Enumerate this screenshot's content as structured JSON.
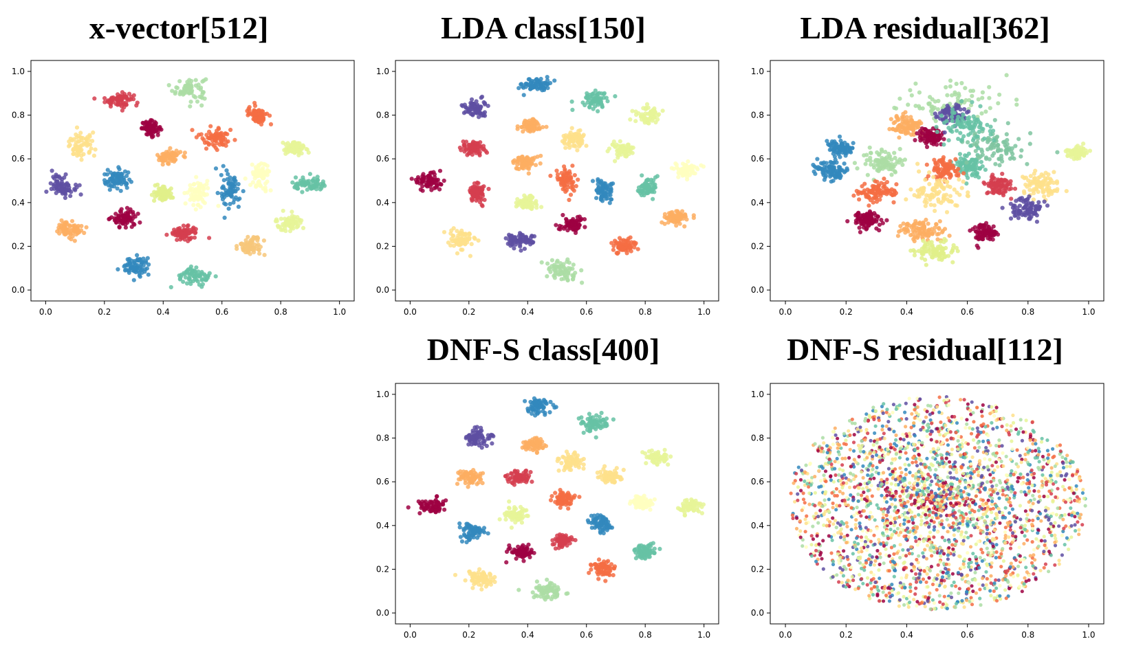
{
  "palette": [
    "#9e0142",
    "#d53e4f",
    "#f46d43",
    "#fdae61",
    "#fee08b",
    "#ffffbf",
    "#e6f598",
    "#abdda4",
    "#66c2a5",
    "#3288bd",
    "#5e4fa2",
    "#7fc4a0",
    "#e0f08a",
    "#f7c77a"
  ],
  "chart_data": [
    {
      "type": "scatter",
      "title": "x-vector[512]",
      "xlim": [
        0,
        1
      ],
      "ylim": [
        0,
        1
      ],
      "xticks": [
        "0.0",
        "0.2",
        "0.4",
        "0.6",
        "0.8",
        "1.0"
      ],
      "yticks": [
        "0.0",
        "0.2",
        "0.4",
        "0.6",
        "0.8",
        "1.0"
      ],
      "series": [
        {
          "cluster_center": [
            0.49,
            0.92
          ],
          "spread": [
            0.035,
            0.035
          ],
          "color_index": 7
        },
        {
          "cluster_center": [
            0.25,
            0.87
          ],
          "spread": [
            0.03,
            0.02
          ],
          "color_index": 1
        },
        {
          "cluster_center": [
            0.36,
            0.74
          ],
          "spread": [
            0.02,
            0.02
          ],
          "color_index": 0
        },
        {
          "cluster_center": [
            0.12,
            0.66
          ],
          "spread": [
            0.03,
            0.035
          ],
          "color_index": 4
        },
        {
          "cluster_center": [
            0.06,
            0.48
          ],
          "spread": [
            0.025,
            0.03
          ],
          "color_index": 10
        },
        {
          "cluster_center": [
            0.24,
            0.5
          ],
          "spread": [
            0.03,
            0.03
          ],
          "color_index": 9
        },
        {
          "cluster_center": [
            0.42,
            0.61
          ],
          "spread": [
            0.025,
            0.02
          ],
          "color_index": 3
        },
        {
          "cluster_center": [
            0.58,
            0.7
          ],
          "spread": [
            0.035,
            0.03
          ],
          "color_index": 2
        },
        {
          "cluster_center": [
            0.72,
            0.8
          ],
          "spread": [
            0.02,
            0.025
          ],
          "color_index": 2
        },
        {
          "cluster_center": [
            0.85,
            0.65
          ],
          "spread": [
            0.03,
            0.02
          ],
          "color_index": 6
        },
        {
          "cluster_center": [
            0.9,
            0.48
          ],
          "spread": [
            0.035,
            0.02
          ],
          "color_index": 8
        },
        {
          "cluster_center": [
            0.73,
            0.52
          ],
          "spread": [
            0.02,
            0.04
          ],
          "color_index": 5
        },
        {
          "cluster_center": [
            0.63,
            0.45
          ],
          "spread": [
            0.02,
            0.05
          ],
          "color_index": 9
        },
        {
          "cluster_center": [
            0.52,
            0.44
          ],
          "spread": [
            0.025,
            0.04
          ],
          "color_index": 5
        },
        {
          "cluster_center": [
            0.4,
            0.44
          ],
          "spread": [
            0.02,
            0.02
          ],
          "color_index": 12
        },
        {
          "cluster_center": [
            0.08,
            0.28
          ],
          "spread": [
            0.03,
            0.025
          ],
          "color_index": 3
        },
        {
          "cluster_center": [
            0.27,
            0.33
          ],
          "spread": [
            0.03,
            0.025
          ],
          "color_index": 0
        },
        {
          "cluster_center": [
            0.47,
            0.26
          ],
          "spread": [
            0.03,
            0.02
          ],
          "color_index": 1
        },
        {
          "cluster_center": [
            0.7,
            0.2
          ],
          "spread": [
            0.025,
            0.025
          ],
          "color_index": 13
        },
        {
          "cluster_center": [
            0.83,
            0.31
          ],
          "spread": [
            0.025,
            0.02
          ],
          "color_index": 6
        },
        {
          "cluster_center": [
            0.31,
            0.11
          ],
          "spread": [
            0.03,
            0.025
          ],
          "color_index": 9
        },
        {
          "cluster_center": [
            0.51,
            0.06
          ],
          "spread": [
            0.035,
            0.025
          ],
          "color_index": 8
        }
      ]
    },
    {
      "type": "scatter",
      "title": "LDA class[150]",
      "xlim": [
        0,
        1
      ],
      "ylim": [
        0,
        1
      ],
      "xticks": [
        "0.0",
        "0.2",
        "0.4",
        "0.6",
        "0.8",
        "1.0"
      ],
      "yticks": [
        "0.0",
        "0.2",
        "0.4",
        "0.6",
        "0.8",
        "1.0"
      ],
      "series": [
        {
          "cluster_center": [
            0.43,
            0.94
          ],
          "spread": [
            0.03,
            0.02
          ],
          "color_index": 9
        },
        {
          "cluster_center": [
            0.63,
            0.87
          ],
          "spread": [
            0.03,
            0.025
          ],
          "color_index": 8
        },
        {
          "cluster_center": [
            0.22,
            0.83
          ],
          "spread": [
            0.025,
            0.025
          ],
          "color_index": 10
        },
        {
          "cluster_center": [
            0.41,
            0.75
          ],
          "spread": [
            0.025,
            0.02
          ],
          "color_index": 3
        },
        {
          "cluster_center": [
            0.81,
            0.8
          ],
          "spread": [
            0.025,
            0.025
          ],
          "color_index": 6
        },
        {
          "cluster_center": [
            0.56,
            0.69
          ],
          "spread": [
            0.025,
            0.02
          ],
          "color_index": 4
        },
        {
          "cluster_center": [
            0.21,
            0.65
          ],
          "spread": [
            0.025,
            0.02
          ],
          "color_index": 1
        },
        {
          "cluster_center": [
            0.72,
            0.64
          ],
          "spread": [
            0.025,
            0.02
          ],
          "color_index": 6
        },
        {
          "cluster_center": [
            0.39,
            0.58
          ],
          "spread": [
            0.025,
            0.02
          ],
          "color_index": 3
        },
        {
          "cluster_center": [
            0.94,
            0.55
          ],
          "spread": [
            0.025,
            0.02
          ],
          "color_index": 5
        },
        {
          "cluster_center": [
            0.06,
            0.5
          ],
          "spread": [
            0.03,
            0.025
          ],
          "color_index": 0
        },
        {
          "cluster_center": [
            0.53,
            0.5
          ],
          "spread": [
            0.02,
            0.03
          ],
          "color_index": 2
        },
        {
          "cluster_center": [
            0.66,
            0.45
          ],
          "spread": [
            0.02,
            0.04
          ],
          "color_index": 9
        },
        {
          "cluster_center": [
            0.81,
            0.47
          ],
          "spread": [
            0.02,
            0.025
          ],
          "color_index": 8
        },
        {
          "cluster_center": [
            0.23,
            0.44
          ],
          "spread": [
            0.02,
            0.03
          ],
          "color_index": 1
        },
        {
          "cluster_center": [
            0.4,
            0.4
          ],
          "spread": [
            0.025,
            0.02
          ],
          "color_index": 6
        },
        {
          "cluster_center": [
            0.91,
            0.33
          ],
          "spread": [
            0.025,
            0.02
          ],
          "color_index": 3
        },
        {
          "cluster_center": [
            0.55,
            0.3
          ],
          "spread": [
            0.025,
            0.02
          ],
          "color_index": 0
        },
        {
          "cluster_center": [
            0.17,
            0.23
          ],
          "spread": [
            0.03,
            0.03
          ],
          "color_index": 4
        },
        {
          "cluster_center": [
            0.37,
            0.23
          ],
          "spread": [
            0.03,
            0.02
          ],
          "color_index": 10
        },
        {
          "cluster_center": [
            0.73,
            0.2
          ],
          "spread": [
            0.025,
            0.02
          ],
          "color_index": 2
        },
        {
          "cluster_center": [
            0.52,
            0.09
          ],
          "spread": [
            0.035,
            0.03
          ],
          "color_index": 7
        }
      ]
    },
    {
      "type": "scatter",
      "title": "LDA residual[362]",
      "xlim": [
        0,
        1
      ],
      "ylim": [
        0,
        1
      ],
      "xticks": [
        "0.0",
        "0.2",
        "0.4",
        "0.6",
        "0.8",
        "1.0"
      ],
      "yticks": [
        "0.0",
        "0.2",
        "0.4",
        "0.6",
        "0.8",
        "1.0"
      ],
      "series": [
        {
          "cluster_center": [
            0.55,
            0.86
          ],
          "spread": [
            0.12,
            0.06
          ],
          "color_index": 7
        },
        {
          "cluster_center": [
            0.4,
            0.75
          ],
          "spread": [
            0.03,
            0.03
          ],
          "color_index": 3
        },
        {
          "cluster_center": [
            0.48,
            0.7
          ],
          "spread": [
            0.025,
            0.025
          ],
          "color_index": 0
        },
        {
          "cluster_center": [
            0.55,
            0.8
          ],
          "spread": [
            0.03,
            0.03
          ],
          "color_index": 10
        },
        {
          "cluster_center": [
            0.18,
            0.65
          ],
          "spread": [
            0.025,
            0.02
          ],
          "color_index": 9
        },
        {
          "cluster_center": [
            0.32,
            0.58
          ],
          "spread": [
            0.04,
            0.035
          ],
          "color_index": 7
        },
        {
          "cluster_center": [
            0.6,
            0.57
          ],
          "spread": [
            0.03,
            0.03
          ],
          "color_index": 8
        },
        {
          "cluster_center": [
            0.52,
            0.55
          ],
          "spread": [
            0.03,
            0.03
          ],
          "color_index": 2
        },
        {
          "cluster_center": [
            0.7,
            0.65
          ],
          "spread": [
            0.06,
            0.06
          ],
          "color_index": 11
        },
        {
          "cluster_center": [
            0.85,
            0.48
          ],
          "spread": [
            0.04,
            0.04
          ],
          "color_index": 4
        },
        {
          "cluster_center": [
            0.96,
            0.63
          ],
          "spread": [
            0.02,
            0.015
          ],
          "color_index": 6
        },
        {
          "cluster_center": [
            0.7,
            0.48
          ],
          "spread": [
            0.025,
            0.025
          ],
          "color_index": 1
        },
        {
          "cluster_center": [
            0.5,
            0.45
          ],
          "spread": [
            0.06,
            0.05
          ],
          "color_index": 4
        },
        {
          "cluster_center": [
            0.3,
            0.45
          ],
          "spread": [
            0.04,
            0.03
          ],
          "color_index": 2
        },
        {
          "cluster_center": [
            0.8,
            0.37
          ],
          "spread": [
            0.035,
            0.035
          ],
          "color_index": 10
        },
        {
          "cluster_center": [
            0.27,
            0.32
          ],
          "spread": [
            0.03,
            0.025
          ],
          "color_index": 0
        },
        {
          "cluster_center": [
            0.45,
            0.27
          ],
          "spread": [
            0.04,
            0.03
          ],
          "color_index": 3
        },
        {
          "cluster_center": [
            0.66,
            0.26
          ],
          "spread": [
            0.025,
            0.025
          ],
          "color_index": 0
        },
        {
          "cluster_center": [
            0.15,
            0.55
          ],
          "spread": [
            0.03,
            0.03
          ],
          "color_index": 9
        },
        {
          "cluster_center": [
            0.6,
            0.75
          ],
          "spread": [
            0.05,
            0.05
          ],
          "color_index": 8
        },
        {
          "cluster_center": [
            0.5,
            0.18
          ],
          "spread": [
            0.04,
            0.03
          ],
          "color_index": 12
        }
      ]
    },
    {
      "type": "scatter",
      "title": "DNF-S class[400]",
      "xlim": [
        0,
        1
      ],
      "ylim": [
        0,
        1
      ],
      "xticks": [
        "0.0",
        "0.2",
        "0.4",
        "0.6",
        "0.8",
        "1.0"
      ],
      "yticks": [
        "0.0",
        "0.2",
        "0.4",
        "0.6",
        "0.8",
        "1.0"
      ],
      "series": [
        {
          "cluster_center": [
            0.43,
            0.94
          ],
          "spread": [
            0.03,
            0.025
          ],
          "color_index": 9
        },
        {
          "cluster_center": [
            0.63,
            0.87
          ],
          "spread": [
            0.03,
            0.025
          ],
          "color_index": 8
        },
        {
          "cluster_center": [
            0.23,
            0.8
          ],
          "spread": [
            0.025,
            0.025
          ],
          "color_index": 10
        },
        {
          "cluster_center": [
            0.42,
            0.77
          ],
          "spread": [
            0.025,
            0.02
          ],
          "color_index": 3
        },
        {
          "cluster_center": [
            0.84,
            0.71
          ],
          "spread": [
            0.025,
            0.02
          ],
          "color_index": 6
        },
        {
          "cluster_center": [
            0.55,
            0.69
          ],
          "spread": [
            0.025,
            0.025
          ],
          "color_index": 4
        },
        {
          "cluster_center": [
            0.2,
            0.62
          ],
          "spread": [
            0.025,
            0.02
          ],
          "color_index": 3
        },
        {
          "cluster_center": [
            0.37,
            0.62
          ],
          "spread": [
            0.025,
            0.02
          ],
          "color_index": 1
        },
        {
          "cluster_center": [
            0.68,
            0.62
          ],
          "spread": [
            0.025,
            0.02
          ],
          "color_index": 4
        },
        {
          "cluster_center": [
            0.07,
            0.49
          ],
          "spread": [
            0.03,
            0.025
          ],
          "color_index": 0
        },
        {
          "cluster_center": [
            0.52,
            0.52
          ],
          "spread": [
            0.025,
            0.02
          ],
          "color_index": 2
        },
        {
          "cluster_center": [
            0.79,
            0.5
          ],
          "spread": [
            0.025,
            0.02
          ],
          "color_index": 5
        },
        {
          "cluster_center": [
            0.95,
            0.49
          ],
          "spread": [
            0.025,
            0.02
          ],
          "color_index": 6
        },
        {
          "cluster_center": [
            0.35,
            0.45
          ],
          "spread": [
            0.025,
            0.02
          ],
          "color_index": 6
        },
        {
          "cluster_center": [
            0.65,
            0.41
          ],
          "spread": [
            0.025,
            0.025
          ],
          "color_index": 9
        },
        {
          "cluster_center": [
            0.21,
            0.37
          ],
          "spread": [
            0.025,
            0.025
          ],
          "color_index": 9
        },
        {
          "cluster_center": [
            0.52,
            0.33
          ],
          "spread": [
            0.02,
            0.02
          ],
          "color_index": 1
        },
        {
          "cluster_center": [
            0.8,
            0.28
          ],
          "spread": [
            0.025,
            0.02
          ],
          "color_index": 8
        },
        {
          "cluster_center": [
            0.38,
            0.28
          ],
          "spread": [
            0.025,
            0.02
          ],
          "color_index": 0
        },
        {
          "cluster_center": [
            0.66,
            0.2
          ],
          "spread": [
            0.025,
            0.025
          ],
          "color_index": 2
        },
        {
          "cluster_center": [
            0.24,
            0.16
          ],
          "spread": [
            0.03,
            0.025
          ],
          "color_index": 4
        },
        {
          "cluster_center": [
            0.47,
            0.1
          ],
          "spread": [
            0.035,
            0.025
          ],
          "color_index": 7
        }
      ]
    },
    {
      "type": "scatter",
      "title": "DNF-S residual[112]",
      "xlim": [
        0,
        1
      ],
      "ylim": [
        0,
        1
      ],
      "xticks": [
        "0.0",
        "0.2",
        "0.4",
        "0.6",
        "0.8",
        "1.0"
      ],
      "yticks": [
        "0.0",
        "0.2",
        "0.4",
        "0.6",
        "0.8",
        "1.0"
      ],
      "series": [
        {
          "cluster_center": [
            0.5,
            0.5
          ],
          "spread": [
            0.49,
            0.49
          ],
          "color_index": -1,
          "distribution": "uniform-ellipse"
        }
      ]
    }
  ]
}
